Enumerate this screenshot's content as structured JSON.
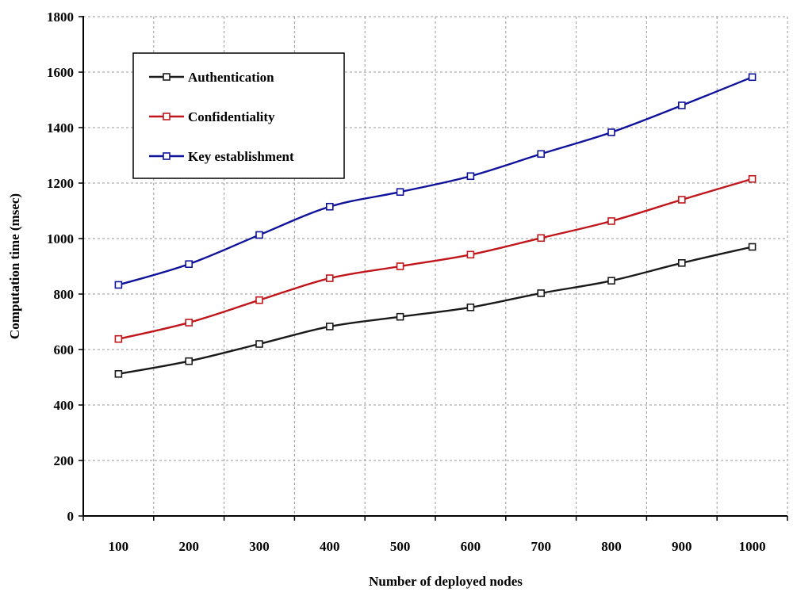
{
  "chart_data": {
    "type": "line",
    "title": "",
    "xlabel": "Number of deployed nodes",
    "ylabel": "Computation time (msec)",
    "categories": [
      "100",
      "200",
      "300",
      "400",
      "500",
      "600",
      "700",
      "800",
      "900",
      "1000"
    ],
    "x": [
      100,
      200,
      300,
      400,
      500,
      600,
      700,
      800,
      900,
      1000
    ],
    "ylim": [
      0,
      1800
    ],
    "yticks": [
      0,
      200,
      400,
      600,
      800,
      1000,
      1200,
      1400,
      1600,
      1800
    ],
    "grid": true,
    "legend_position": "top-left",
    "series": [
      {
        "name": "Authentication",
        "color": "#1a1a1a",
        "marker": "square",
        "values": [
          512,
          558,
          620,
          683,
          718,
          752,
          803,
          848,
          912,
          970
        ]
      },
      {
        "name": "Confidentiality",
        "color": "#c0161b",
        "marker": "square",
        "values": [
          638,
          697,
          778,
          857,
          900,
          942,
          1002,
          1063,
          1140,
          1215
        ]
      },
      {
        "name": "Key establishment",
        "color": "#0f129a",
        "marker": "square",
        "values": [
          833,
          908,
          1013,
          1115,
          1168,
          1225,
          1305,
          1383,
          1480,
          1582
        ]
      }
    ]
  }
}
